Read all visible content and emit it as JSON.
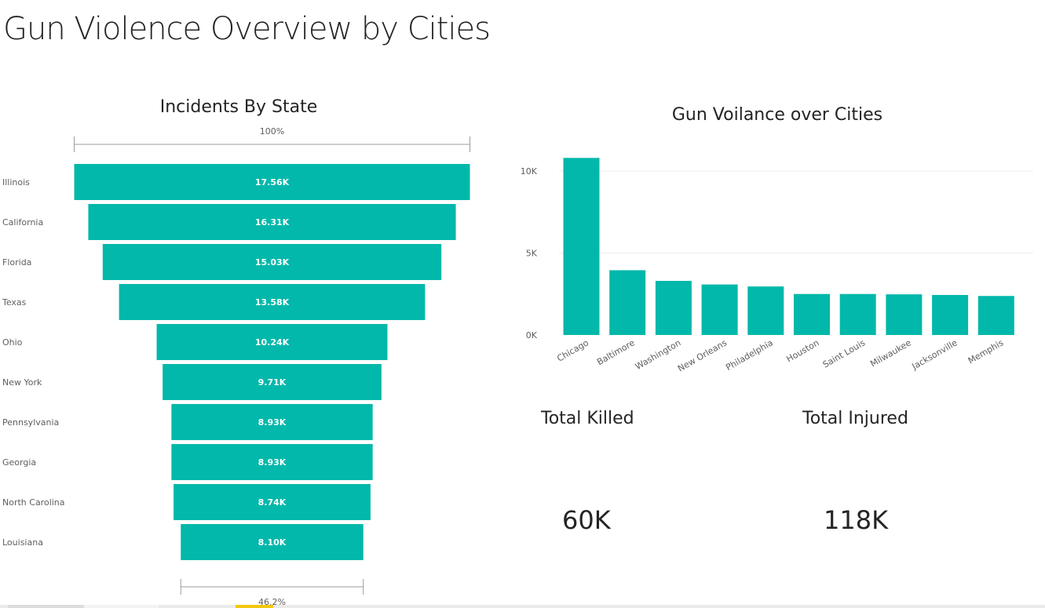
{
  "page": {
    "title": "Gun Violence Overview by Cities"
  },
  "colors": {
    "accent": "#01b8aa",
    "text": "#252423",
    "muted": "#605e5c",
    "grid": "#ececec"
  },
  "funnel": {
    "title": "Incidents By State",
    "top_pct": "100%",
    "bottom_pct": "46.2%"
  },
  "column": {
    "title": "Gun Voilance over Cities"
  },
  "cards": {
    "killed": {
      "title": "Total Killed",
      "value": "60K"
    },
    "injured": {
      "title": "Total Injured",
      "value": "118K"
    }
  },
  "chart_data": [
    {
      "type": "funnel",
      "title": "Incidents By State",
      "categories": [
        "Illinois",
        "California",
        "Florida",
        "Texas",
        "Ohio",
        "New York",
        "Pennsylvania",
        "Georgia",
        "North Carolina",
        "Louisiana"
      ],
      "values": [
        17560,
        16310,
        15030,
        13580,
        10240,
        9710,
        8930,
        8930,
        8740,
        8100
      ],
      "value_labels": [
        "17.56K",
        "16.31K",
        "15.03K",
        "13.58K",
        "10.24K",
        "9.71K",
        "8.93K",
        "8.93K",
        "8.74K",
        "8.10K"
      ]
    },
    {
      "type": "bar",
      "title": "Gun Voilance over Cities",
      "categories": [
        "Chicago",
        "Baltimore",
        "Washington",
        "New Orleans",
        "Philadelphia",
        "Houston",
        "Saint Louis",
        "Milwaukee",
        "Jacksonville",
        "Memphis"
      ],
      "values": [
        10800,
        3950,
        3300,
        3080,
        2960,
        2500,
        2500,
        2480,
        2440,
        2380
      ],
      "ylim": [
        0,
        10000
      ],
      "yticks": [
        0,
        5000,
        10000
      ],
      "ytick_labels": [
        "0K",
        "5K",
        "10K"
      ],
      "xlabel": "",
      "ylabel": "",
      "grid": true
    }
  ]
}
